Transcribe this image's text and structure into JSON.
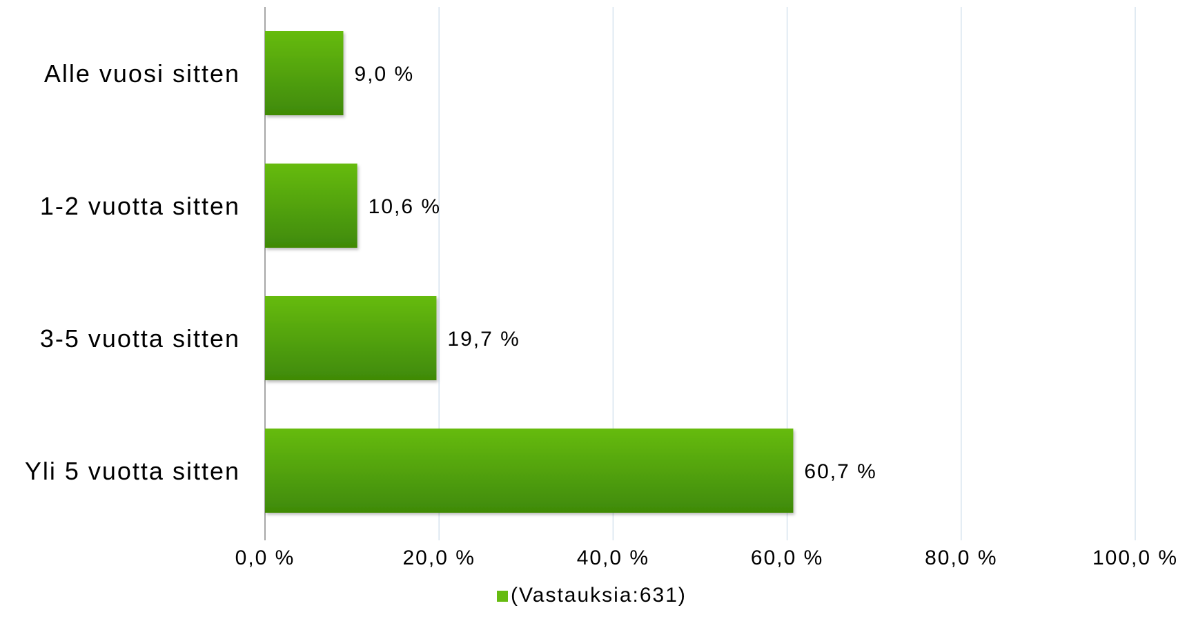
{
  "chart_data": {
    "type": "bar",
    "orientation": "horizontal",
    "categories": [
      "Alle vuosi sitten",
      "1-2 vuotta sitten",
      "3-5 vuotta sitten",
      "Yli 5 vuotta sitten"
    ],
    "series": [
      {
        "name": "(Vastauksia:631)",
        "values": [
          9.0,
          10.6,
          19.7,
          60.7
        ],
        "labels": [
          "9,0 %",
          "10,6 %",
          "19,7 %",
          "60,7 %"
        ],
        "color_top": "#66bb11",
        "color_bottom": "#3f8a06"
      }
    ],
    "xlim": [
      0,
      100
    ],
    "xticks": [
      0,
      20,
      40,
      60,
      80,
      100
    ],
    "xtick_labels": [
      "0,0 %",
      "20,0 %",
      "40,0 %",
      "60,0 %",
      "80,0 %",
      "100,0 %"
    ],
    "grid": true,
    "grid_color": "#d6e3ee",
    "legend_position": "bottom",
    "title": "",
    "xlabel": "",
    "ylabel": ""
  }
}
